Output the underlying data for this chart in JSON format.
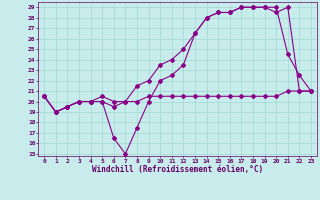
{
  "xlabel": "Windchill (Refroidissement éolien,°C)",
  "bg_color": "#c8ecec",
  "grid_color": "#a0d8d0",
  "line_color": "#880088",
  "xlim": [
    -0.5,
    23.5
  ],
  "ylim": [
    14.8,
    29.5
  ],
  "yticks": [
    15,
    16,
    17,
    18,
    19,
    20,
    21,
    22,
    23,
    24,
    25,
    26,
    27,
    28,
    29
  ],
  "xticks": [
    0,
    1,
    2,
    3,
    4,
    5,
    6,
    7,
    8,
    9,
    10,
    11,
    12,
    13,
    14,
    15,
    16,
    17,
    18,
    19,
    20,
    21,
    22,
    23
  ],
  "line1_x": [
    0,
    1,
    2,
    3,
    4,
    5,
    6,
    7,
    8,
    9,
    10,
    11,
    12,
    13,
    14,
    15,
    16,
    17,
    18,
    19,
    20,
    21,
    22,
    23
  ],
  "line1_y": [
    20.5,
    19.0,
    19.5,
    20.0,
    20.0,
    20.0,
    19.5,
    20.0,
    20.0,
    20.5,
    20.5,
    20.5,
    20.5,
    20.5,
    20.5,
    20.5,
    20.5,
    20.5,
    20.5,
    20.5,
    20.5,
    21.0,
    21.0,
    21.0
  ],
  "line2_x": [
    0,
    1,
    2,
    3,
    4,
    5,
    6,
    7,
    8,
    9,
    10,
    11,
    12,
    13,
    14,
    15,
    16,
    17,
    18,
    19,
    20,
    21,
    22,
    23
  ],
  "line2_y": [
    20.5,
    19.0,
    19.5,
    20.0,
    20.0,
    20.0,
    16.5,
    15.0,
    17.5,
    20.0,
    22.0,
    22.5,
    23.5,
    26.5,
    28.0,
    28.5,
    28.5,
    29.0,
    29.0,
    29.0,
    29.0,
    24.5,
    22.5,
    21.0
  ],
  "line3_x": [
    0,
    1,
    2,
    3,
    4,
    5,
    6,
    7,
    8,
    9,
    10,
    11,
    12,
    13,
    14,
    15,
    16,
    17,
    18,
    19,
    20,
    21,
    22,
    23
  ],
  "line3_y": [
    20.5,
    19.0,
    19.5,
    20.0,
    20.0,
    20.5,
    20.0,
    20.0,
    21.5,
    22.0,
    23.5,
    24.0,
    25.0,
    26.5,
    28.0,
    28.5,
    28.5,
    29.0,
    29.0,
    29.0,
    28.5,
    29.0,
    21.0,
    21.0
  ],
  "marker": "D",
  "markersize": 2.0,
  "linewidth": 0.8,
  "tick_fontsize": 4.5,
  "label_fontsize": 5.5
}
